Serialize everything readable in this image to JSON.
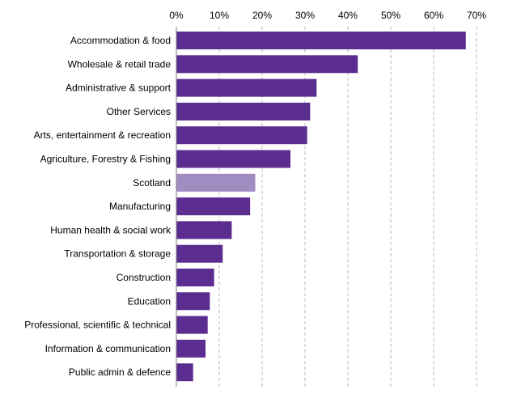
{
  "chart_data": {
    "type": "bar",
    "orientation": "horizontal",
    "title": "",
    "xlabel": "",
    "ylabel": "",
    "xlim": [
      0,
      70
    ],
    "xticks": [
      0,
      10,
      20,
      30,
      40,
      50,
      60,
      70
    ],
    "tick_suffix": "%",
    "tick_position": "top",
    "grid": true,
    "legend": "none",
    "categories": [
      "Accommodation & food",
      "Wholesale & retail trade",
      "Administrative & support",
      "Other Services",
      "Arts, entertainment & recreation",
      "Agriculture, Forestry & Fishing",
      "Scotland",
      "Manufacturing",
      "Human health & social work",
      "Transportation & storage",
      "Construction",
      "Education",
      "Professional, scientific & technical",
      "Information & communication",
      "Public admin & defence"
    ],
    "values": [
      67.5,
      42.3,
      32.7,
      31.2,
      30.5,
      26.6,
      18.4,
      17.2,
      12.9,
      10.8,
      8.8,
      7.8,
      7.3,
      6.8,
      3.9
    ],
    "colors": {
      "default": "#5c2d91",
      "highlight": "#a18cc2"
    },
    "highlight_category": "Scotland"
  }
}
